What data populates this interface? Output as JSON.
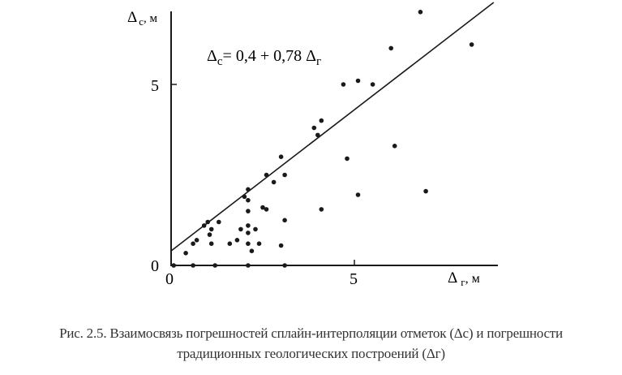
{
  "chart_data": {
    "type": "scatter",
    "title": "",
    "xlabel": "Δг, м",
    "ylabel": "Δс, м",
    "xlim": [
      0,
      8.6
    ],
    "ylim": [
      0,
      7.3
    ],
    "x_ticks": [
      0,
      5
    ],
    "y_ticks": [
      0,
      5
    ],
    "grid": false,
    "legend": null,
    "annotations": [
      {
        "text": "Δс= 0,4 + 0,78 Δг",
        "x": 1.0,
        "y": 5.7
      }
    ],
    "regression_line": {
      "intercept": 0.4,
      "slope": 0.78,
      "x_range": [
        0,
        8.8
      ]
    },
    "series": [
      {
        "name": "observations",
        "points": [
          [
            0.07,
            0.0
          ],
          [
            0.6,
            0.0
          ],
          [
            1.2,
            0.0
          ],
          [
            2.1,
            0.0
          ],
          [
            3.1,
            0.0
          ],
          [
            0.4,
            0.34
          ],
          [
            0.6,
            0.6
          ],
          [
            0.7,
            0.7
          ],
          [
            0.9,
            1.1
          ],
          [
            1.0,
            1.2
          ],
          [
            1.05,
            0.85
          ],
          [
            1.1,
            1.0
          ],
          [
            1.1,
            0.6
          ],
          [
            1.3,
            1.2
          ],
          [
            1.6,
            0.6
          ],
          [
            1.8,
            0.7
          ],
          [
            1.9,
            1.0
          ],
          [
            2.0,
            1.9
          ],
          [
            2.1,
            2.1
          ],
          [
            2.1,
            1.8
          ],
          [
            2.1,
            1.5
          ],
          [
            2.1,
            1.1
          ],
          [
            2.1,
            0.9
          ],
          [
            2.1,
            0.6
          ],
          [
            2.2,
            0.4
          ],
          [
            2.3,
            1.0
          ],
          [
            2.4,
            0.6
          ],
          [
            2.5,
            1.6
          ],
          [
            2.6,
            1.55
          ],
          [
            2.6,
            2.5
          ],
          [
            2.8,
            2.3
          ],
          [
            3.0,
            3.0
          ],
          [
            3.0,
            0.55
          ],
          [
            3.1,
            2.5
          ],
          [
            3.1,
            1.25
          ],
          [
            3.9,
            3.8
          ],
          [
            4.0,
            3.6
          ],
          [
            4.1,
            4.0
          ],
          [
            4.1,
            1.55
          ],
          [
            4.7,
            5.0
          ],
          [
            4.8,
            2.95
          ],
          [
            5.1,
            5.1
          ],
          [
            5.1,
            1.95
          ],
          [
            5.5,
            5.0
          ],
          [
            6.0,
            6.0
          ],
          [
            6.1,
            3.3
          ],
          [
            6.8,
            7.0
          ],
          [
            6.95,
            2.05
          ],
          [
            8.2,
            6.1
          ]
        ]
      }
    ]
  },
  "figure": {
    "y_axis_label_main": "Δ",
    "y_axis_label_sub": "с",
    "y_axis_label_unit": ", м",
    "x_axis_label_main": "Δ",
    "x_axis_label_sub": "г",
    "x_axis_label_unit": ", м",
    "x_tick_0": "0",
    "x_tick_5": "5",
    "y_tick_0": "0",
    "y_tick_5": "5",
    "equation_lhs_main": "Δ",
    "equation_lhs_sub": "с",
    "equation_rhs": "= 0,4 + 0,78 Δ",
    "equation_rhs_sub": "г"
  },
  "caption": {
    "line1": "Рис. 2.5. Взаимосвязь погрешностей сплайн-интерполяции отметок (Δс) и погрешности",
    "line2": "традиционных геологических построений (Δг)"
  }
}
